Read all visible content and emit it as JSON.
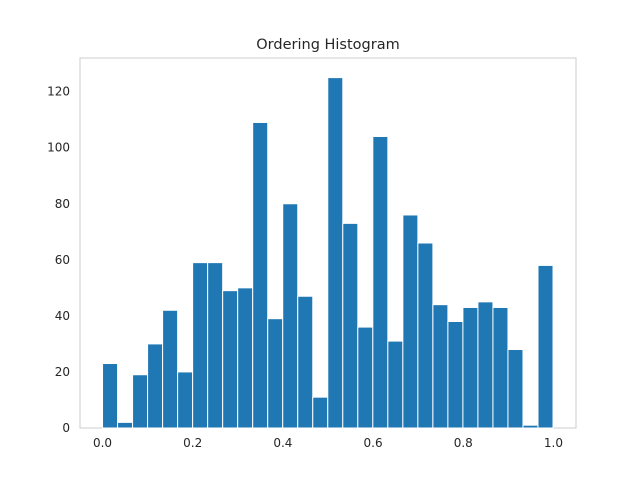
{
  "chart_data": {
    "type": "bar",
    "title": "Ordering Histogram",
    "xlabel": "",
    "ylabel": "",
    "bin_start": 0.0,
    "bin_width": 0.0333,
    "values": [
      23,
      2,
      19,
      30,
      42,
      20,
      59,
      59,
      49,
      50,
      109,
      39,
      80,
      47,
      11,
      125,
      73,
      36,
      104,
      31,
      76,
      66,
      44,
      38,
      43,
      45,
      43,
      28,
      1,
      58
    ],
    "xlim": [
      -0.05,
      1.05
    ],
    "ylim": [
      0,
      132
    ],
    "xticks": [
      0.0,
      0.2,
      0.4,
      0.6,
      0.8,
      1.0
    ],
    "xtick_labels": [
      "0.0",
      "0.2",
      "0.4",
      "0.6",
      "0.8",
      "1.0"
    ],
    "yticks": [
      0,
      20,
      40,
      60,
      80,
      100,
      120
    ],
    "ytick_labels": [
      "0",
      "20",
      "40",
      "60",
      "80",
      "100",
      "120"
    ],
    "grid": false,
    "bar_color": "#1f77b4",
    "edge_color": "#ffffff"
  }
}
